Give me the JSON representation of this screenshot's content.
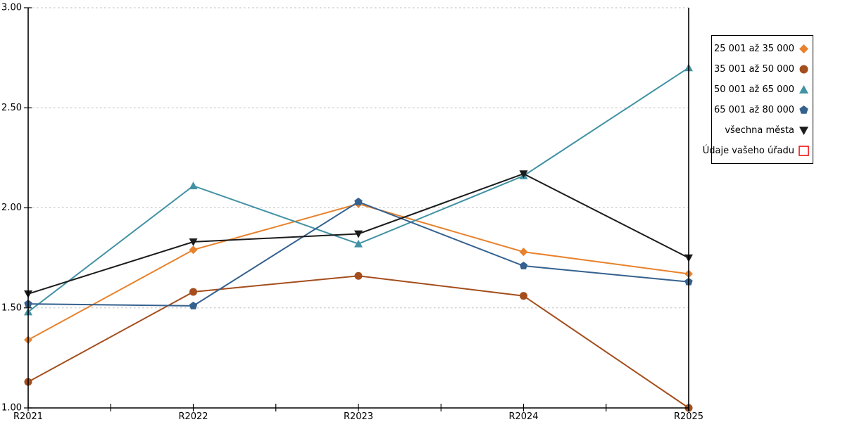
{
  "chart_data": {
    "type": "line",
    "title": "",
    "xlabel": "",
    "ylabel": "",
    "categories": [
      "R2021",
      "R2022",
      "R2023",
      "R2024",
      "R2025"
    ],
    "ylim": [
      1.0,
      3.0
    ],
    "ytick_step": 0.5,
    "ytick_labels": [
      "1.00",
      "1.50",
      "2.00",
      "2.50",
      "3.00"
    ],
    "grid": "horizontal-dashed",
    "legend_position": "right-outside",
    "axis_color": "#000000",
    "gridline_color": "#BBBBBB",
    "series": [
      {
        "name": "25 001 až 35 000",
        "marker": "diamond",
        "color": "#E8822D",
        "values": [
          1.34,
          1.79,
          2.02,
          1.78,
          1.67
        ]
      },
      {
        "name": "35 001 až 50 000",
        "marker": "circle",
        "color": "#A44E1D",
        "values": [
          1.13,
          1.58,
          1.66,
          1.56,
          1.0
        ]
      },
      {
        "name": "50 001 až 65 000",
        "marker": "triangle-up",
        "color": "#4292A4",
        "values": [
          1.48,
          2.11,
          1.82,
          2.16,
          2.7
        ]
      },
      {
        "name": "65 001 až 80 000",
        "marker": "pentagon",
        "color": "#35618F",
        "values": [
          1.52,
          1.51,
          2.03,
          1.71,
          1.63
        ]
      },
      {
        "name": "všechna města",
        "marker": "triangle-down",
        "color": "#1C1C1C",
        "values": [
          1.57,
          1.83,
          1.87,
          2.17,
          1.75
        ]
      },
      {
        "name": "Údaje vašeho úřadu",
        "marker": "square-open",
        "color": "#EE1111",
        "values": []
      }
    ]
  }
}
